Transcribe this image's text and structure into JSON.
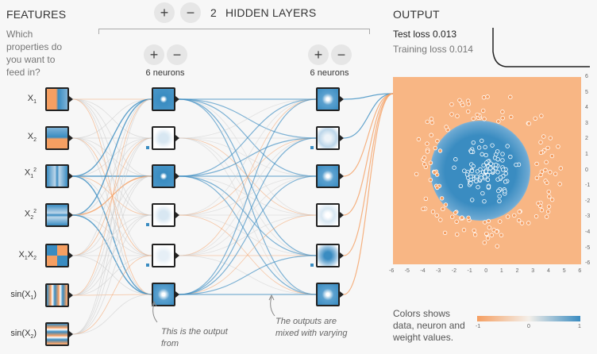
{
  "header": {
    "features_title": "FEATURES",
    "features_question": "Which properties do you want to feed in?",
    "layers_count": "2",
    "layers_label": "HIDDEN LAYERS",
    "output_title": "OUTPUT",
    "add_symbol": "+",
    "remove_symbol": "−"
  },
  "features": [
    {
      "label": "X",
      "sub": "1",
      "sup": ""
    },
    {
      "label": "X",
      "sub": "2",
      "sup": ""
    },
    {
      "label": "X",
      "sub": "1",
      "sup": "2"
    },
    {
      "label": "X",
      "sub": "2",
      "sup": "2"
    },
    {
      "label": "X X",
      "sub": "1 2",
      "sup": ""
    },
    {
      "label": "sin(X )",
      "sub": "1",
      "sup": ""
    },
    {
      "label": "sin(X )",
      "sub": "2",
      "sup": ""
    }
  ],
  "layers": [
    {
      "neurons_label": "6 neurons"
    },
    {
      "neurons_label": "6 neurons"
    }
  ],
  "notes": {
    "note1": "This is the output from",
    "note2": "The outputs are mixed with varying"
  },
  "output": {
    "test_loss_label": "Test loss",
    "test_loss_value": "0.013",
    "training_loss_label": "Training loss",
    "training_loss_value": "0.014",
    "x_ticks": [
      "-6",
      "-5",
      "-4",
      "-3",
      "-2",
      "-1",
      "0",
      "1",
      "2",
      "3",
      "4",
      "5",
      "6"
    ],
    "y_ticks": [
      "6",
      "5",
      "4",
      "3",
      "2",
      "1",
      "0",
      "-1",
      "-2",
      "-3",
      "-4",
      "-5",
      "-6"
    ],
    "colors_text": "Colors shows data, neuron and weight values.",
    "scale_min": "-1",
    "scale_mid": "0",
    "scale_max": "1"
  },
  "colors": {
    "orange": "#f59f62",
    "blue": "#3a8cc1",
    "bg_orange": "#f8b684"
  }
}
